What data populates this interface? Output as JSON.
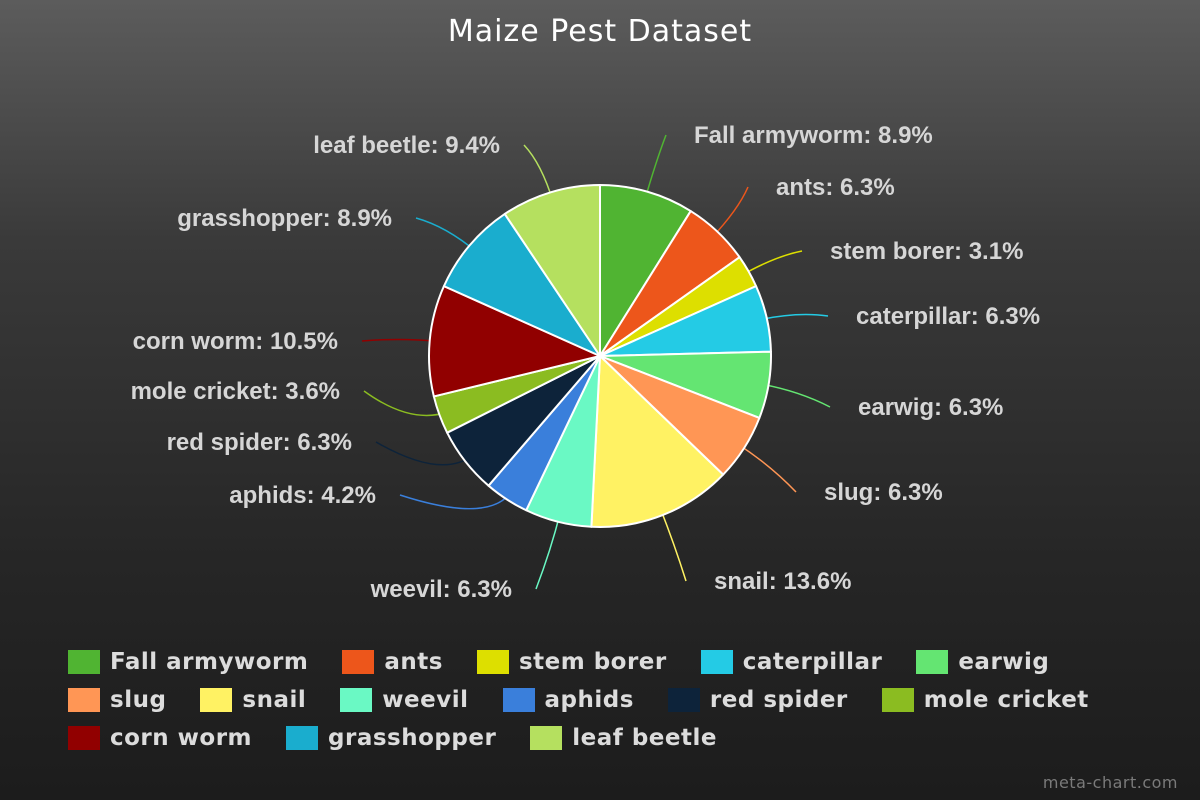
{
  "chart_data": {
    "type": "pie",
    "title": "Maize Pest Dataset",
    "slices": [
      {
        "label": "Fall armyworm",
        "value": 8.9,
        "color": "#50b432"
      },
      {
        "label": "ants",
        "value": 6.3,
        "color": "#ed561b"
      },
      {
        "label": "stem borer",
        "value": 3.1,
        "color": "#dddf00"
      },
      {
        "label": "caterpillar",
        "value": 6.3,
        "color": "#24cbe5"
      },
      {
        "label": "earwig",
        "value": 6.3,
        "color": "#64e572"
      },
      {
        "label": "slug",
        "value": 6.3,
        "color": "#ff9655"
      },
      {
        "label": "snail",
        "value": 13.6,
        "color": "#fff263"
      },
      {
        "label": "weevil",
        "value": 6.3,
        "color": "#6af9c4"
      },
      {
        "label": "aphids",
        "value": 4.2,
        "color": "#3a7fdb"
      },
      {
        "label": "red spider",
        "value": 6.3,
        "color": "#0d233a"
      },
      {
        "label": "mole cricket",
        "value": 3.6,
        "color": "#8bbc21"
      },
      {
        "label": "corn worm",
        "value": 10.5,
        "color": "#910000"
      },
      {
        "label": "grasshopper",
        "value": 8.9,
        "color": "#1aadce"
      },
      {
        "label": "leaf beetle",
        "value": 9.4,
        "color": "#b5e05f"
      }
    ],
    "data_labels": [
      "Fall armyworm: 8.9%",
      "ants: 6.3%",
      "stem borer: 3.1%",
      "caterpillar: 6.3%",
      "earwig: 6.3%",
      "slug: 6.3%",
      "snail: 13.6%",
      "weevil: 6.3%",
      "aphids: 4.2%",
      "red spider: 6.3%",
      "mole cricket: 3.6%",
      "corn worm: 10.5%",
      "grasshopper: 8.9%",
      "leaf beetle: 9.4%"
    ],
    "legend_position": "bottom"
  },
  "watermark": "meta-chart.com"
}
